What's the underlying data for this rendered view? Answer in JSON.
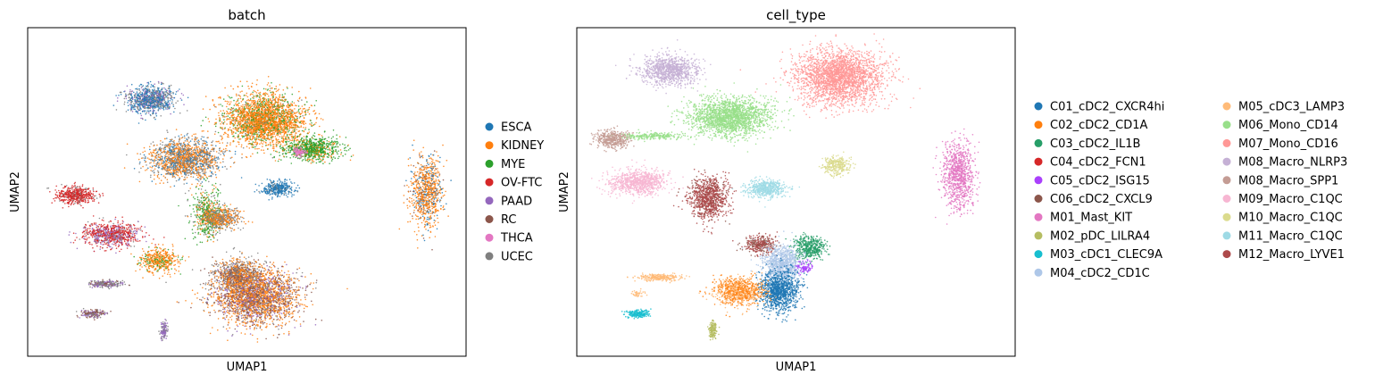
{
  "chart_data": [
    {
      "type": "scatter",
      "title": "batch",
      "xlabel": "UMAP1",
      "ylabel": "UMAP2",
      "ticks": "none",
      "grid": false,
      "legend_placement": "right",
      "legend": [
        {
          "name": "ESCA",
          "color": "#1f77b4"
        },
        {
          "name": "KIDNEY",
          "color": "#ff7f0e"
        },
        {
          "name": "MYE",
          "color": "#2ca02c"
        },
        {
          "name": "OV-FTC",
          "color": "#d62728"
        },
        {
          "name": "PAAD",
          "color": "#9467bd"
        },
        {
          "name": "RC",
          "color": "#8c564b"
        },
        {
          "name": "THCA",
          "color": "#e377c2"
        },
        {
          "name": "UCEC",
          "color": "#7f7f7f"
        }
      ],
      "clusters": [
        {
          "x": 0.28,
          "y": 0.22,
          "rx": 0.06,
          "ry": 0.045,
          "n": 900,
          "mix": {
            "ESCA": 0.5,
            "UCEC": 0.3,
            "PAAD": 0.2
          }
        },
        {
          "x": 0.54,
          "y": 0.28,
          "rx": 0.1,
          "ry": 0.085,
          "n": 2600,
          "mix": {
            "KIDNEY": 0.75,
            "MYE": 0.2,
            "UCEC": 0.05
          }
        },
        {
          "x": 0.65,
          "y": 0.37,
          "rx": 0.07,
          "ry": 0.04,
          "n": 800,
          "mix": {
            "MYE": 0.8,
            "KIDNEY": 0.2
          }
        },
        {
          "x": 0.36,
          "y": 0.4,
          "rx": 0.09,
          "ry": 0.065,
          "n": 1600,
          "mix": {
            "KIDNEY": 0.45,
            "UCEC": 0.35,
            "ESCA": 0.2
          }
        },
        {
          "x": 0.11,
          "y": 0.51,
          "rx": 0.045,
          "ry": 0.03,
          "n": 500,
          "mix": {
            "OV-FTC": 0.8,
            "UCEC": 0.2
          }
        },
        {
          "x": 0.19,
          "y": 0.63,
          "rx": 0.07,
          "ry": 0.04,
          "n": 800,
          "mix": {
            "OV-FTC": 0.6,
            "PAAD": 0.3,
            "UCEC": 0.1
          }
        },
        {
          "x": 0.41,
          "y": 0.57,
          "rx": 0.04,
          "ry": 0.08,
          "n": 500,
          "mix": {
            "MYE": 0.6,
            "KIDNEY": 0.2,
            "UCEC": 0.2
          }
        },
        {
          "x": 0.3,
          "y": 0.71,
          "rx": 0.05,
          "ry": 0.04,
          "n": 450,
          "mix": {
            "KIDNEY": 0.8,
            "MYE": 0.2
          }
        },
        {
          "x": 0.44,
          "y": 0.58,
          "rx": 0.05,
          "ry": 0.035,
          "n": 500,
          "mix": {
            "UCEC": 0.5,
            "KIDNEY": 0.5
          }
        },
        {
          "x": 0.57,
          "y": 0.49,
          "rx": 0.04,
          "ry": 0.025,
          "n": 350,
          "mix": {
            "ESCA": 0.9,
            "UCEC": 0.1
          }
        },
        {
          "x": 0.62,
          "y": 0.38,
          "rx": 0.015,
          "ry": 0.015,
          "n": 80,
          "mix": {
            "THCA": 1.0
          }
        },
        {
          "x": 0.91,
          "y": 0.5,
          "rx": 0.04,
          "ry": 0.12,
          "n": 800,
          "mix": {
            "KIDNEY": 0.7,
            "ESCA": 0.2,
            "RC": 0.1
          }
        },
        {
          "x": 0.48,
          "y": 0.75,
          "rx": 0.06,
          "ry": 0.05,
          "n": 800,
          "mix": {
            "UCEC": 0.4,
            "KIDNEY": 0.3,
            "RC": 0.3
          }
        },
        {
          "x": 0.52,
          "y": 0.82,
          "rx": 0.11,
          "ry": 0.09,
          "n": 2600,
          "mix": {
            "KIDNEY": 0.45,
            "RC": 0.3,
            "PAAD": 0.15,
            "UCEC": 0.1
          }
        },
        {
          "x": 0.18,
          "y": 0.78,
          "rx": 0.05,
          "ry": 0.012,
          "n": 220,
          "mix": {
            "UCEC": 0.5,
            "PAAD": 0.3,
            "RC": 0.2
          }
        },
        {
          "x": 0.15,
          "y": 0.87,
          "rx": 0.03,
          "ry": 0.015,
          "n": 180,
          "mix": {
            "RC": 0.5,
            "PAAD": 0.3,
            "UCEC": 0.2
          }
        },
        {
          "x": 0.31,
          "y": 0.92,
          "rx": 0.01,
          "ry": 0.03,
          "n": 120,
          "mix": {
            "PAAD": 0.6,
            "UCEC": 0.4
          }
        }
      ]
    },
    {
      "type": "scatter",
      "title": "cell_type",
      "xlabel": "UMAP1",
      "ylabel": "UMAP2",
      "ticks": "none",
      "grid": false,
      "legend_placement": "right, 2 columns",
      "legend": [
        {
          "name": "C01_cDC2_CXCR4hi",
          "color": "#1f77b4"
        },
        {
          "name": "C02_cDC2_CD1A",
          "color": "#ff7f0e"
        },
        {
          "name": "C03_cDC2_IL1B",
          "color": "#279e68"
        },
        {
          "name": "C04_cDC2_FCN1",
          "color": "#d62728"
        },
        {
          "name": "C05_cDC2_ISG15",
          "color": "#aa40fc"
        },
        {
          "name": "C06_cDC2_CXCL9",
          "color": "#8c564b"
        },
        {
          "name": "M01_Mast_KIT",
          "color": "#e377c2"
        },
        {
          "name": "M02_pDC_LILRA4",
          "color": "#b5bd61"
        },
        {
          "name": "M03_cDC1_CLEC9A",
          "color": "#17becf"
        },
        {
          "name": "M04_cDC2_CD1C",
          "color": "#aec7e8"
        },
        {
          "name": "M05_cDC3_LAMP3",
          "color": "#ffbb78"
        },
        {
          "name": "M06_Mono_CD14",
          "color": "#98df8a"
        },
        {
          "name": "M07_Mono_CD16",
          "color": "#ff9896"
        },
        {
          "name": "M08_Macro_NLRP3",
          "color": "#c5b0d5"
        },
        {
          "name": "M08_Macro_SPP1",
          "color": "#c49c94"
        },
        {
          "name": "M09_Macro_C1QC",
          "color": "#f7b6d2"
        },
        {
          "name": "M10_Macro_C1QC",
          "color": "#dbdb8d"
        },
        {
          "name": "M11_Macro_C1QC",
          "color": "#9edae5"
        },
        {
          "name": "M12_Macro_LYVE1",
          "color": "#ad494a"
        }
      ],
      "clusters": [
        {
          "x": 0.21,
          "y": 0.13,
          "rx": 0.07,
          "ry": 0.05,
          "n": 1000,
          "mix": {
            "M08_Macro_NLRP3": 1.0
          }
        },
        {
          "x": 0.6,
          "y": 0.15,
          "rx": 0.11,
          "ry": 0.09,
          "n": 2600,
          "mix": {
            "M07_Mono_CD16": 1.0
          }
        },
        {
          "x": 0.35,
          "y": 0.27,
          "rx": 0.1,
          "ry": 0.065,
          "n": 2000,
          "mix": {
            "M06_Mono_CD14": 1.0
          }
        },
        {
          "x": 0.17,
          "y": 0.33,
          "rx": 0.08,
          "ry": 0.012,
          "n": 250,
          "mix": {
            "M06_Mono_CD14": 1.0
          }
        },
        {
          "x": 0.08,
          "y": 0.34,
          "rx": 0.04,
          "ry": 0.03,
          "n": 450,
          "mix": {
            "M08_Macro_SPP1": 1.0
          }
        },
        {
          "x": 0.14,
          "y": 0.47,
          "rx": 0.07,
          "ry": 0.04,
          "n": 900,
          "mix": {
            "M09_Macro_C1QC": 1.0
          }
        },
        {
          "x": 0.3,
          "y": 0.52,
          "rx": 0.05,
          "ry": 0.07,
          "n": 900,
          "mix": {
            "M12_Macro_LYVE1": 0.85,
            "C06_cDC2_CXCL9": 0.15
          }
        },
        {
          "x": 0.43,
          "y": 0.49,
          "rx": 0.05,
          "ry": 0.03,
          "n": 550,
          "mix": {
            "M11_Macro_C1QC": 1.0
          }
        },
        {
          "x": 0.59,
          "y": 0.42,
          "rx": 0.035,
          "ry": 0.03,
          "n": 300,
          "mix": {
            "M10_Macro_C1QC": 1.0
          }
        },
        {
          "x": 0.87,
          "y": 0.45,
          "rx": 0.04,
          "ry": 0.11,
          "n": 900,
          "mix": {
            "M01_Mast_KIT": 1.0
          }
        },
        {
          "x": 0.53,
          "y": 0.67,
          "rx": 0.04,
          "ry": 0.04,
          "n": 450,
          "mix": {
            "C03_cDC2_IL1B": 1.0
          }
        },
        {
          "x": 0.42,
          "y": 0.66,
          "rx": 0.04,
          "ry": 0.03,
          "n": 350,
          "mix": {
            "M12_Macro_LYVE1": 0.6,
            "C06_cDC2_CXCL9": 0.4
          }
        },
        {
          "x": 0.47,
          "y": 0.72,
          "rx": 0.05,
          "ry": 0.06,
          "n": 900,
          "mix": {
            "M04_cDC2_CD1C": 1.0
          }
        },
        {
          "x": 0.46,
          "y": 0.8,
          "rx": 0.05,
          "ry": 0.07,
          "n": 1100,
          "mix": {
            "C01_cDC2_CXCR4hi": 1.0
          }
        },
        {
          "x": 0.37,
          "y": 0.8,
          "rx": 0.06,
          "ry": 0.045,
          "n": 900,
          "mix": {
            "C02_cDC2_CD1A": 0.6,
            "M05_cDC3_LAMP3": 0.4
          }
        },
        {
          "x": 0.52,
          "y": 0.73,
          "rx": 0.02,
          "ry": 0.02,
          "n": 80,
          "mix": {
            "C05_cDC2_ISG15": 1.0
          }
        },
        {
          "x": 0.19,
          "y": 0.76,
          "rx": 0.06,
          "ry": 0.012,
          "n": 250,
          "mix": {
            "M05_cDC3_LAMP3": 1.0
          }
        },
        {
          "x": 0.14,
          "y": 0.81,
          "rx": 0.02,
          "ry": 0.01,
          "n": 40,
          "mix": {
            "M05_cDC3_LAMP3": 1.0
          }
        },
        {
          "x": 0.14,
          "y": 0.87,
          "rx": 0.03,
          "ry": 0.015,
          "n": 200,
          "mix": {
            "M03_cDC1_CLEC9A": 1.0
          }
        },
        {
          "x": 0.31,
          "y": 0.92,
          "rx": 0.01,
          "ry": 0.03,
          "n": 150,
          "mix": {
            "M02_pDC_LILRA4": 1.0
          }
        }
      ]
    }
  ]
}
